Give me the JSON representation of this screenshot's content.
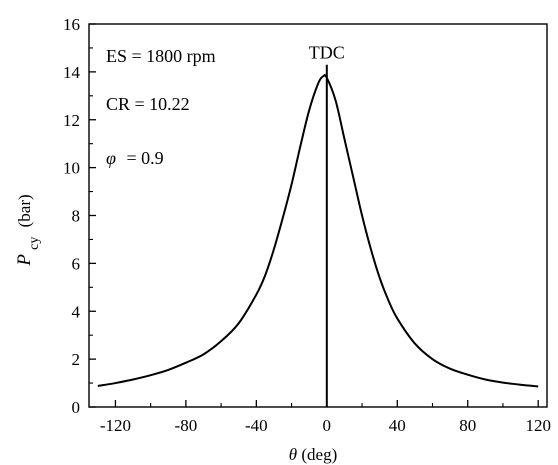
{
  "chart_data": {
    "type": "line",
    "x_label_symbol": "θ",
    "x_label_unit": "(deg)",
    "y_label_symbol": "P",
    "y_label_subscript": "cy",
    "y_label_unit": "(bar)",
    "xlim": [
      -135,
      125
    ],
    "ylim": [
      0,
      16
    ],
    "x_ticks": [
      -120,
      -80,
      -40,
      0,
      40,
      80,
      120
    ],
    "x_tick_labels": [
      "-120",
      "-80",
      "-40",
      "0",
      "40",
      "80",
      "120"
    ],
    "y_ticks": [
      0,
      2,
      4,
      6,
      8,
      10,
      12,
      14,
      16
    ],
    "y_tick_labels": [
      "0",
      "2",
      "4",
      "6",
      "8",
      "10",
      "12",
      "14",
      "16"
    ],
    "annotations": {
      "es": "ES = 1800 rpm",
      "cr": "CR = 10.22",
      "phi_symbol": "φ",
      "phi_value": "= 0.9",
      "tdc": "TDC"
    },
    "tdc_x": 0,
    "grid": false,
    "series": [
      {
        "color": "#000000",
        "x": [
          -130,
          -120,
          -110,
          -100,
          -90,
          -80,
          -70,
          -60,
          -50,
          -40,
          -35,
          -30,
          -25,
          -20,
          -15,
          -10,
          -5,
          -2,
          0,
          5,
          10,
          15,
          20,
          25,
          30,
          35,
          40,
          50,
          60,
          70,
          80,
          90,
          100,
          110,
          120
        ],
        "y": [
          0.88,
          1.0,
          1.15,
          1.33,
          1.55,
          1.85,
          2.2,
          2.75,
          3.5,
          4.7,
          5.5,
          6.6,
          7.9,
          9.3,
          10.9,
          12.4,
          13.5,
          13.82,
          13.75,
          12.8,
          11.2,
          9.6,
          8.0,
          6.6,
          5.4,
          4.45,
          3.7,
          2.65,
          2.0,
          1.6,
          1.35,
          1.15,
          1.02,
          0.93,
          0.86
        ]
      }
    ]
  }
}
